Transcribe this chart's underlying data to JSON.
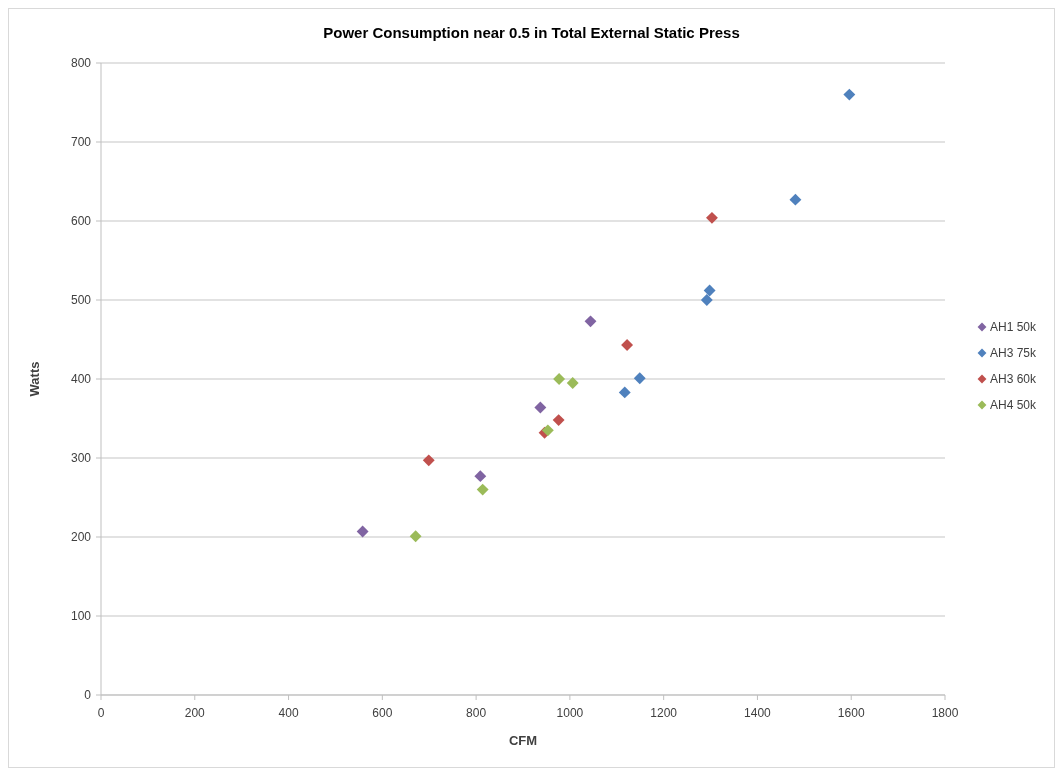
{
  "chart_data": {
    "type": "scatter",
    "title": "Power Consumption near 0.5 in Total External Static Press",
    "xlabel": "CFM",
    "ylabel": "Watts",
    "xlim": [
      0,
      1800
    ],
    "xticks": [
      0,
      200,
      400,
      600,
      800,
      1000,
      1200,
      1400,
      1600,
      1800
    ],
    "ylim": [
      0,
      800
    ],
    "yticks": [
      0,
      100,
      200,
      300,
      400,
      500,
      600,
      700,
      800
    ],
    "grid": "y",
    "legend": "right",
    "marker": "diamond",
    "series": [
      {
        "name": "AH1 50k",
        "color": "#8064a2",
        "x": [
          558,
          809,
          937,
          1044
        ],
        "values": [
          207,
          277,
          364,
          473
        ]
      },
      {
        "name": "AH3 75k",
        "color": "#4f81bd",
        "x": [
          1596,
          1481,
          1298,
          1292,
          1149,
          1117
        ],
        "values": [
          760,
          627,
          512,
          500,
          401,
          383
        ]
      },
      {
        "name": "AH3 60k",
        "color": "#c0504d",
        "x": [
          699,
          946,
          976,
          1122,
          1303
        ],
        "values": [
          297,
          332,
          348,
          443,
          604
        ]
      },
      {
        "name": "AH4 50k",
        "color": "#9bbb59",
        "x": [
          671,
          814,
          953,
          977,
          1006
        ],
        "values": [
          201,
          260,
          335,
          400,
          395
        ]
      }
    ]
  }
}
